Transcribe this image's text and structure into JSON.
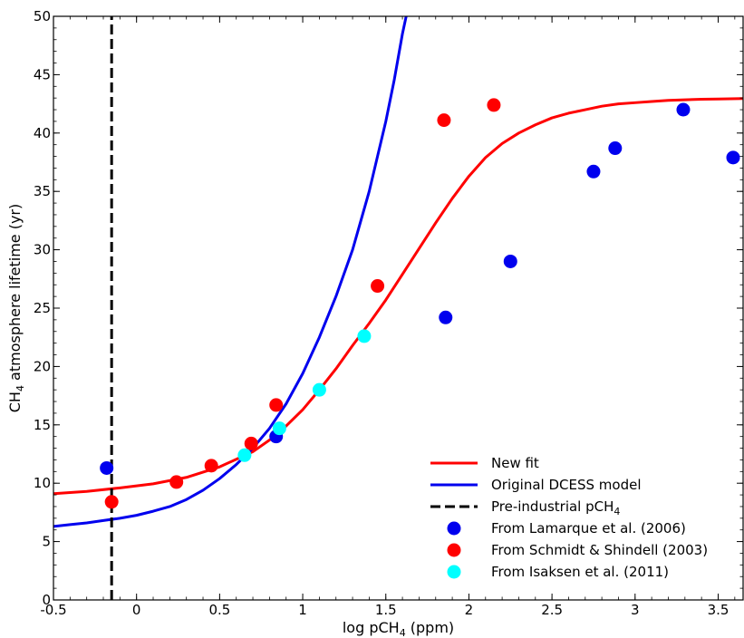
{
  "chart_data": {
    "type": "scatter",
    "xlabel": "log pCH",
    "xlabel_sub": "4",
    "xlabel_tail": " (ppm)",
    "ylabel": "CH",
    "ylabel_sub": "4",
    "ylabel_tail": " atmosphere lifetime (yr)",
    "xlim": [
      -0.5,
      3.65
    ],
    "ylim": [
      0,
      50
    ],
    "x_ticks": [
      -0.5,
      0,
      0.5,
      1,
      1.5,
      2,
      2.5,
      3,
      3.5
    ],
    "x_tick_labels": [
      "-0.5",
      "0",
      "0.5",
      "1",
      "1.5",
      "2",
      "2.5",
      "3",
      "3.5"
    ],
    "y_ticks": [
      0,
      5,
      10,
      15,
      20,
      25,
      30,
      35,
      40,
      45,
      50
    ],
    "y_tick_labels": [
      "0",
      "5",
      "10",
      "15",
      "20",
      "25",
      "30",
      "35",
      "40",
      "45",
      "50"
    ],
    "grid": false,
    "legend_position": "bottom-right",
    "curves": [
      {
        "name": "New fit",
        "color": "#ff0000",
        "style": "solid",
        "x": [
          -0.5,
          -0.3,
          -0.1,
          0.1,
          0.3,
          0.5,
          0.7,
          0.85,
          1.0,
          1.1,
          1.2,
          1.3,
          1.4,
          1.5,
          1.6,
          1.7,
          1.8,
          1.9,
          2.0,
          2.1,
          2.2,
          2.3,
          2.4,
          2.5,
          2.6,
          2.7,
          2.8,
          2.9,
          3.0,
          3.1,
          3.2,
          3.3,
          3.4,
          3.5,
          3.65
        ],
        "y": [
          9.1,
          9.3,
          9.6,
          9.95,
          10.5,
          11.4,
          12.7,
          14.2,
          16.3,
          18.0,
          19.8,
          21.8,
          23.7,
          25.7,
          27.9,
          30.1,
          32.3,
          34.4,
          36.3,
          37.9,
          39.1,
          40.0,
          40.7,
          41.3,
          41.7,
          42.0,
          42.3,
          42.5,
          42.6,
          42.7,
          42.8,
          42.85,
          42.9,
          42.92,
          42.95
        ]
      },
      {
        "name": "Original DCESS model",
        "color": "#0000ee",
        "style": "solid",
        "x": [
          -0.5,
          -0.4,
          -0.3,
          -0.2,
          -0.1,
          0.0,
          0.1,
          0.2,
          0.3,
          0.4,
          0.5,
          0.6,
          0.7,
          0.8,
          0.9,
          1.0,
          1.1,
          1.2,
          1.3,
          1.4,
          1.5,
          1.55,
          1.6,
          1.63
        ],
        "y": [
          6.3,
          6.45,
          6.6,
          6.8,
          7.0,
          7.25,
          7.6,
          8.0,
          8.6,
          9.4,
          10.4,
          11.6,
          13.0,
          14.7,
          16.8,
          19.4,
          22.5,
          26.0,
          30.0,
          35.0,
          41.0,
          44.5,
          48.5,
          50.5
        ]
      },
      {
        "name": "Pre-industrial pCH",
        "name_sub": "4",
        "color": "#000000",
        "style": "dashed",
        "x": [
          -0.15,
          -0.15
        ],
        "y": [
          0,
          50
        ]
      }
    ],
    "series": [
      {
        "name": "From Lamarque et al. (2006)",
        "color": "#0000ee",
        "points": [
          [
            -0.18,
            11.3
          ],
          [
            0.84,
            14.0
          ],
          [
            1.86,
            24.2
          ],
          [
            2.25,
            29.0
          ],
          [
            2.75,
            36.7
          ],
          [
            2.88,
            38.7
          ],
          [
            3.29,
            42.0
          ],
          [
            3.59,
            37.9
          ]
        ]
      },
      {
        "name": "From Schmidt & Shindell (2003)",
        "color": "#ff0000",
        "points": [
          [
            -0.15,
            8.4
          ],
          [
            0.24,
            10.1
          ],
          [
            0.45,
            11.5
          ],
          [
            0.69,
            13.4
          ],
          [
            0.84,
            16.7
          ],
          [
            1.45,
            26.9
          ],
          [
            1.85,
            41.1
          ],
          [
            2.15,
            42.4
          ]
        ]
      },
      {
        "name": "From Isaksen et al. (2011)",
        "color": "#00ffff",
        "points": [
          [
            0.65,
            12.4
          ],
          [
            0.86,
            14.7
          ],
          [
            1.1,
            18.0
          ],
          [
            1.37,
            22.6
          ]
        ]
      }
    ]
  }
}
